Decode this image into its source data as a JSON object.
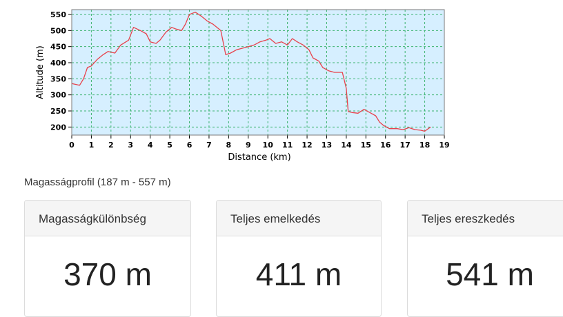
{
  "chart_data": {
    "type": "line",
    "xlabel": "Distance (km)",
    "ylabel": "Altitude (m)",
    "xlim": [
      0,
      19
    ],
    "ylim": [
      175,
      565
    ],
    "x_ticks": [
      "0",
      "1",
      "2",
      "3",
      "4",
      "5",
      "6",
      "7",
      "8",
      "9",
      "10",
      "11",
      "12",
      "13",
      "14",
      "15",
      "16",
      "17",
      "18",
      "19"
    ],
    "y_ticks": [
      "200",
      "250",
      "300",
      "350",
      "400",
      "450",
      "500",
      "550"
    ],
    "grid": true,
    "colors": {
      "plot_background": "#d6efff",
      "grid": "#3cb371",
      "line": "#e8414b"
    },
    "series": [
      {
        "x": [
          0,
          0.4,
          0.6,
          0.8,
          1.0,
          1.3,
          1.6,
          1.85,
          2.2,
          2.5,
          2.9,
          3.15,
          3.5,
          3.8,
          4.0,
          4.3,
          4.5,
          4.8,
          5.1,
          5.3,
          5.6,
          5.8,
          6.0,
          6.3,
          6.6,
          6.9,
          7.2,
          7.6,
          7.75,
          7.85,
          8.1,
          8.4,
          8.7,
          9.0,
          9.3,
          9.6,
          9.9,
          10.1,
          10.4,
          10.7,
          11.0,
          11.25,
          11.5,
          11.8,
          12.1,
          12.3,
          12.6,
          12.8,
          13.1,
          13.4,
          13.8,
          14.0,
          14.1,
          14.3,
          14.6,
          14.9,
          15.2,
          15.5,
          15.7,
          15.9,
          16.2,
          16.6,
          16.9,
          17.2,
          17.5,
          17.8,
          18.0,
          18.3
        ],
        "y": [
          335,
          330,
          350,
          385,
          390,
          410,
          425,
          435,
          430,
          455,
          470,
          510,
          500,
          490,
          465,
          460,
          470,
          495,
          510,
          505,
          500,
          520,
          550,
          557,
          545,
          530,
          520,
          500,
          455,
          425,
          430,
          440,
          445,
          450,
          455,
          465,
          470,
          475,
          460,
          465,
          455,
          475,
          465,
          455,
          440,
          415,
          405,
          385,
          375,
          370,
          370,
          320,
          248,
          245,
          243,
          255,
          245,
          235,
          215,
          205,
          195,
          195,
          192,
          198,
          192,
          190,
          187,
          200
        ]
      }
    ]
  },
  "caption": "Magasságprofil (187 m - 557 m)",
  "stats": [
    {
      "label": "Magasságkülönbség",
      "value": "370 m"
    },
    {
      "label": "Teljes emelkedés",
      "value": "411 m"
    },
    {
      "label": "Teljes ereszkedés",
      "value": "541 m"
    }
  ]
}
